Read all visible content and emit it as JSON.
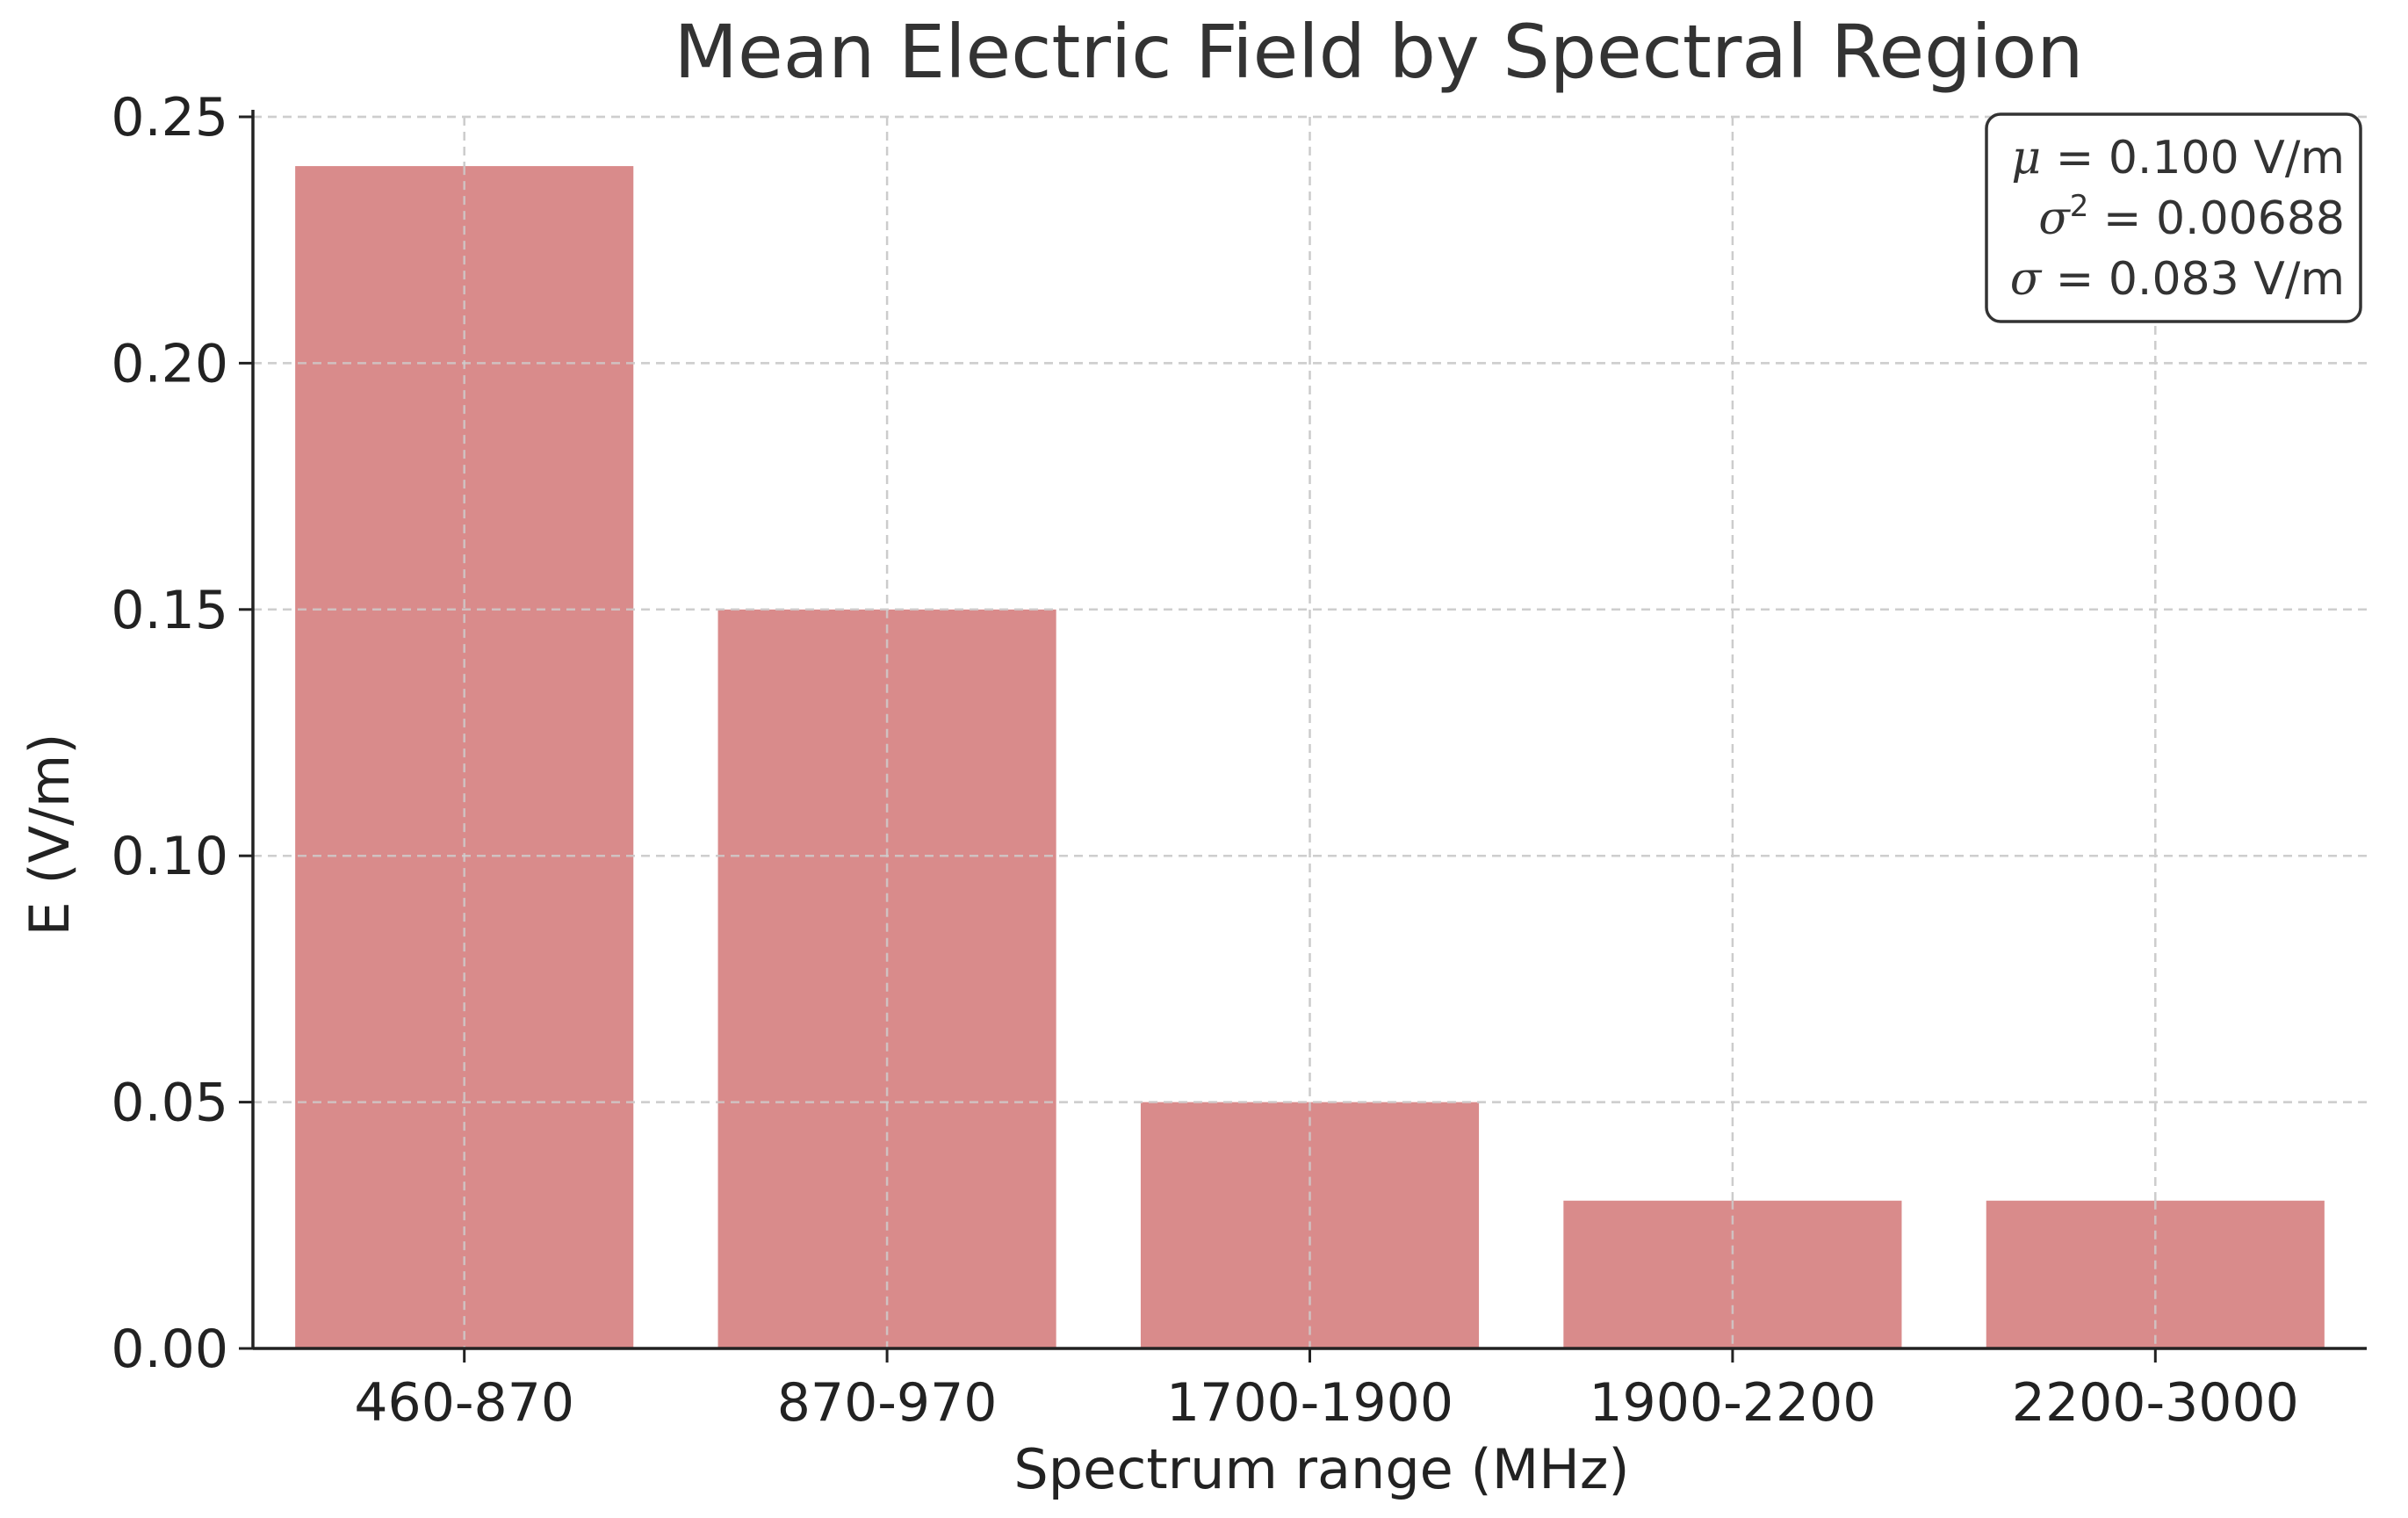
{
  "chart_data": {
    "type": "bar",
    "title": "Mean Electric Field by Spectral Region",
    "xlabel": "Spectrum range (MHz)",
    "ylabel": "E (V/m)",
    "categories": [
      "460-870",
      "870-970",
      "1700-1900",
      "1900-2200",
      "2200-3000"
    ],
    "values": [
      0.24,
      0.15,
      0.05,
      0.03,
      0.03
    ],
    "ylim": [
      0,
      0.25
    ],
    "yticks": [
      "0.00",
      "0.05",
      "0.10",
      "0.15",
      "0.20",
      "0.25"
    ],
    "grid": true,
    "bar_color": "#d98b8b",
    "annotation": {
      "position": "top-right",
      "lines": [
        {
          "symbol": "μ",
          "sup": "",
          "text": " = 0.100 V/m"
        },
        {
          "symbol": "σ",
          "sup": "2",
          "text": " = 0.00688"
        },
        {
          "symbol": "σ",
          "sup": "",
          "text": " = 0.083 V/m"
        }
      ]
    }
  }
}
